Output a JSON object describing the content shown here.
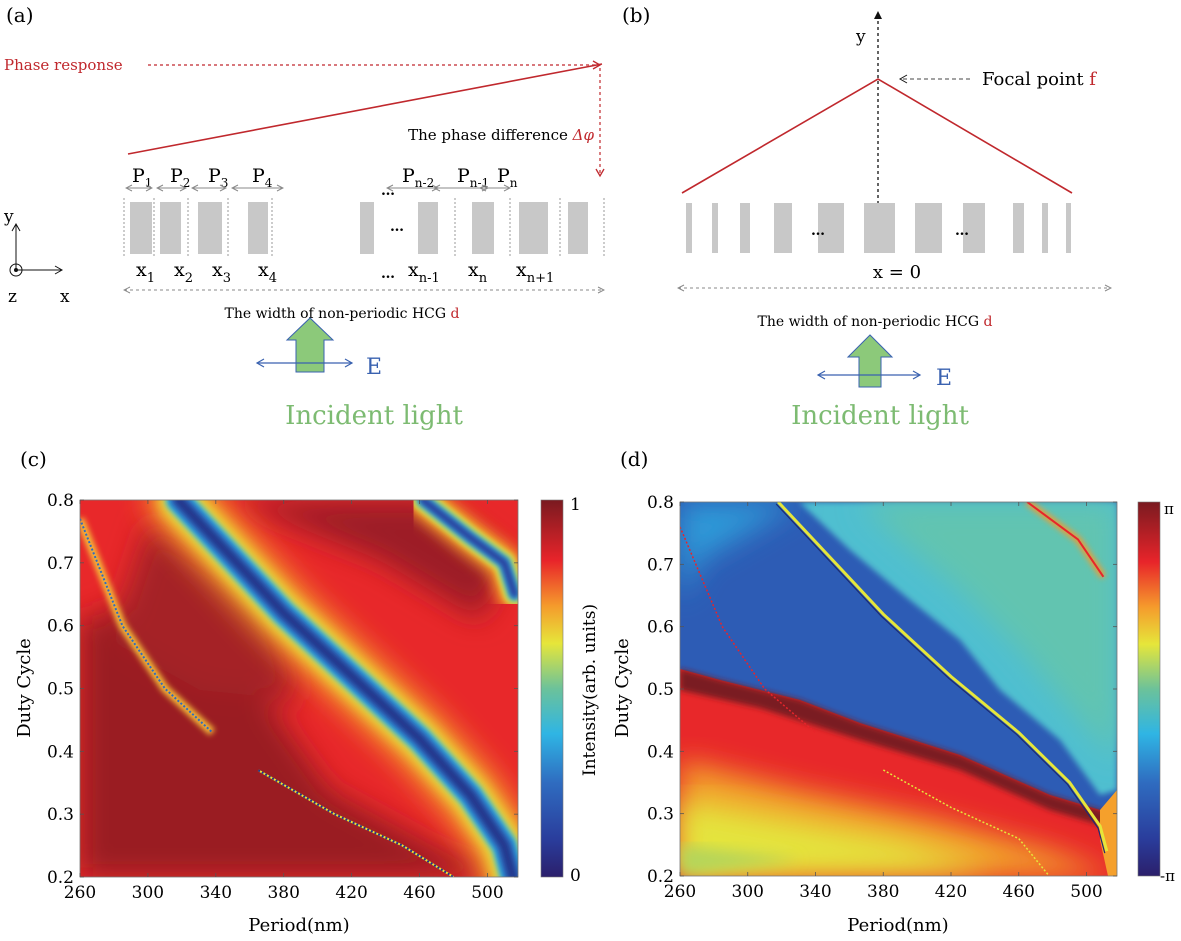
{
  "panels": {
    "a": {
      "label": "(a)",
      "phase_response": "Phase response",
      "phase_difference": "The phase difference ",
      "delta_phi": "Δφ",
      "periods": [
        {
          "main": "P",
          "sub": "1"
        },
        {
          "main": "P",
          "sub": "2"
        },
        {
          "main": "P",
          "sub": "3"
        },
        {
          "main": "P",
          "sub": "4"
        },
        {
          "main": "…",
          "sub": ""
        },
        {
          "main": "P",
          "sub": "n-2"
        },
        {
          "main": "P",
          "sub": "n-1"
        },
        {
          "main": "P",
          "sub": "n"
        }
      ],
      "positions": [
        {
          "main": "x",
          "sub": "1"
        },
        {
          "main": "x",
          "sub": "2"
        },
        {
          "main": "x",
          "sub": "3"
        },
        {
          "main": "x",
          "sub": "4"
        },
        {
          "main": "…",
          "sub": ""
        },
        {
          "main": "x",
          "sub": "n-1"
        },
        {
          "main": "x",
          "sub": "n"
        },
        {
          "main": "x",
          "sub": "n+1"
        }
      ],
      "ellipsis": "…",
      "width_label": "The width of non-periodic HCG ",
      "width_symbol": "d",
      "axes": {
        "y": "y",
        "x": "x",
        "z": "z"
      },
      "field": "E",
      "incident": "Incident light"
    },
    "b": {
      "label": "(b)",
      "y_axis": "y",
      "focal_point": "Focal point ",
      "focal_symbol": "f",
      "ellipsis": "…",
      "center_label": "x = 0",
      "width_label": "The width of non-periodic HCG ",
      "width_symbol": "d",
      "field": "E",
      "incident": "Incident light"
    },
    "c": {
      "label": "(c)"
    },
    "d": {
      "label": "(d)"
    }
  },
  "colors": {
    "red_annotation": "#c0282d",
    "grating": "#c8c8c8",
    "green_arrow": "#8cc97a",
    "blue_field": "#3a62b0",
    "incident_text": "#7dbb72"
  },
  "chart_data": [
    {
      "type": "heatmap",
      "panel": "c",
      "title": "",
      "xlabel": "Period(nm)",
      "ylabel": "Duty Cycle",
      "xlim": [
        260,
        518
      ],
      "ylim": [
        0.2,
        0.8
      ],
      "xticks": [
        260,
        300,
        340,
        380,
        420,
        460,
        500
      ],
      "yticks": [
        0.2,
        0.3,
        0.4,
        0.5,
        0.6,
        0.7,
        0.8
      ],
      "colorbar": {
        "label": "Intensity(arb. units)",
        "min_label": "0",
        "max_label": "1",
        "range": [
          0,
          1
        ],
        "colormap": "jet"
      },
      "features": [
        {
          "name": "main low-transmission band",
          "value": 0,
          "path": [
            [
              318,
              0.8
            ],
            [
              380,
              0.62
            ],
            [
              420,
              0.52
            ],
            [
              460,
              0.42
            ],
            [
              490,
              0.33
            ],
            [
              510,
              0.25
            ],
            [
              515,
              0.2
            ]
          ]
        },
        {
          "name": "upper-right low band",
          "value": 0,
          "path": [
            [
              462,
              0.8
            ],
            [
              490,
              0.74
            ],
            [
              510,
              0.7
            ],
            [
              516,
              0.65
            ]
          ]
        },
        {
          "name": "left thin resonance",
          "value": 0.3,
          "path": [
            [
              260,
              0.77
            ],
            [
              285,
              0.6
            ],
            [
              310,
              0.5
            ],
            [
              338,
              0.43
            ]
          ]
        },
        {
          "name": "lower thin resonance",
          "value": 0.3,
          "path": [
            [
              365,
              0.37
            ],
            [
              410,
              0.3
            ],
            [
              450,
              0.25
            ],
            [
              480,
              0.2
            ]
          ]
        }
      ]
    },
    {
      "type": "heatmap",
      "panel": "d",
      "title": "",
      "xlabel": "Period(nm)",
      "ylabel": "Duty Cycle",
      "xlim": [
        260,
        518
      ],
      "ylim": [
        0.2,
        0.8
      ],
      "xticks": [
        260,
        300,
        340,
        380,
        420,
        460,
        500
      ],
      "yticks": [
        0.2,
        0.3,
        0.4,
        0.5,
        0.6,
        0.7,
        0.8
      ],
      "colorbar": {
        "label": "",
        "min_label": "-π",
        "max_label": "π",
        "range": [
          -3.1416,
          3.1416
        ],
        "colormap": "jet"
      },
      "features": [
        {
          "name": "phase wrap boundary (upper)",
          "path": [
            [
              318,
              0.8
            ],
            [
              380,
              0.62
            ],
            [
              420,
              0.52
            ],
            [
              460,
              0.43
            ],
            [
              490,
              0.35
            ],
            [
              508,
              0.28
            ],
            [
              512,
              0.24
            ]
          ]
        },
        {
          "name": "phase wrap boundary (lower)",
          "path": [
            [
              260,
              0.54
            ],
            [
              290,
              0.5
            ],
            [
              340,
              0.43
            ],
            [
              400,
              0.37
            ],
            [
              460,
              0.31
            ],
            [
              510,
              0.28
            ],
            [
              518,
              0.27
            ]
          ]
        },
        {
          "name": "upper-right boundary",
          "path": [
            [
              465,
              0.8
            ],
            [
              495,
              0.74
            ],
            [
              510,
              0.68
            ]
          ]
        }
      ]
    }
  ]
}
